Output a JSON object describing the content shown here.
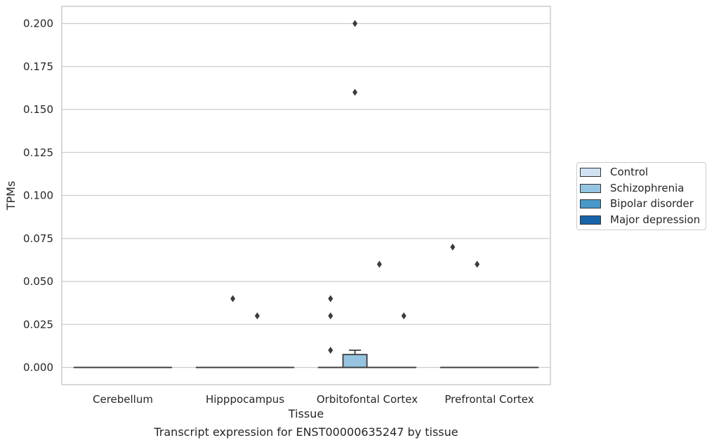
{
  "chart_data": {
    "type": "box",
    "xlabel": "Tissue",
    "ylabel": "TPMs",
    "caption": "Transcript expression for ENST00000635247 by tissue",
    "ylim": [
      -0.01,
      0.21
    ],
    "yticks": [
      "0.000",
      "0.025",
      "0.050",
      "0.075",
      "0.100",
      "0.125",
      "0.150",
      "0.175",
      "0.200"
    ],
    "ytick_values": [
      0,
      0.025,
      0.05,
      0.075,
      0.1,
      0.125,
      0.15,
      0.175,
      0.2
    ],
    "grid": true,
    "legend_position": "right",
    "categories": [
      "Cerebellum",
      "Hipppocampus",
      "Orbitofontal Cortex",
      "Prefrontal Cortex"
    ],
    "series": [
      {
        "name": "Control",
        "color": "#d0e1f2"
      },
      {
        "name": "Schizophrenia",
        "color": "#94c4df"
      },
      {
        "name": "Bipolar disorder",
        "color": "#4a98c9"
      },
      {
        "name": "Major depression",
        "color": "#1764ab"
      }
    ],
    "boxes": [
      {
        "category": 0,
        "series": 0,
        "q1": 0,
        "median": 0,
        "q3": 0,
        "whisker_low": 0,
        "whisker_high": 0,
        "outliers": []
      },
      {
        "category": 0,
        "series": 1,
        "q1": 0,
        "median": 0,
        "q3": 0,
        "whisker_low": 0,
        "whisker_high": 0,
        "outliers": []
      },
      {
        "category": 0,
        "series": 2,
        "q1": 0,
        "median": 0,
        "q3": 0,
        "whisker_low": 0,
        "whisker_high": 0,
        "outliers": []
      },
      {
        "category": 0,
        "series": 3,
        "q1": 0,
        "median": 0,
        "q3": 0,
        "whisker_low": 0,
        "whisker_high": 0,
        "outliers": []
      },
      {
        "category": 1,
        "series": 0,
        "q1": 0,
        "median": 0,
        "q3": 0,
        "whisker_low": 0,
        "whisker_high": 0,
        "outliers": []
      },
      {
        "category": 1,
        "series": 1,
        "q1": 0,
        "median": 0,
        "q3": 0,
        "whisker_low": 0,
        "whisker_high": 0,
        "outliers": [
          0.04
        ]
      },
      {
        "category": 1,
        "series": 2,
        "q1": 0,
        "median": 0,
        "q3": 0,
        "whisker_low": 0,
        "whisker_high": 0,
        "outliers": [
          0.03
        ]
      },
      {
        "category": 1,
        "series": 3,
        "q1": 0,
        "median": 0,
        "q3": 0,
        "whisker_low": 0,
        "whisker_high": 0,
        "outliers": []
      },
      {
        "category": 2,
        "series": 0,
        "q1": 0,
        "median": 0,
        "q3": 0,
        "whisker_low": 0,
        "whisker_high": 0,
        "outliers": [
          0.04,
          0.03,
          0.01
        ]
      },
      {
        "category": 2,
        "series": 1,
        "q1": 0,
        "median": 0,
        "q3": 0.0075,
        "whisker_low": 0,
        "whisker_high": 0.01,
        "outliers": [
          0.2,
          0.16
        ]
      },
      {
        "category": 2,
        "series": 2,
        "q1": 0,
        "median": 0,
        "q3": 0,
        "whisker_low": 0,
        "whisker_high": 0,
        "outliers": [
          0.06
        ]
      },
      {
        "category": 2,
        "series": 3,
        "q1": 0,
        "median": 0,
        "q3": 0,
        "whisker_low": 0,
        "whisker_high": 0,
        "outliers": [
          0.03
        ]
      },
      {
        "category": 3,
        "series": 0,
        "q1": 0,
        "median": 0,
        "q3": 0,
        "whisker_low": 0,
        "whisker_high": 0,
        "outliers": [
          0.07
        ]
      },
      {
        "category": 3,
        "series": 1,
        "q1": 0,
        "median": 0,
        "q3": 0,
        "whisker_low": 0,
        "whisker_high": 0,
        "outliers": [
          0.06
        ]
      },
      {
        "category": 3,
        "series": 2,
        "q1": 0,
        "median": 0,
        "q3": 0,
        "whisker_low": 0,
        "whisker_high": 0,
        "outliers": []
      },
      {
        "category": 3,
        "series": 3,
        "q1": 0,
        "median": 0,
        "q3": 0,
        "whisker_low": 0,
        "whisker_high": 0,
        "outliers": []
      }
    ]
  }
}
